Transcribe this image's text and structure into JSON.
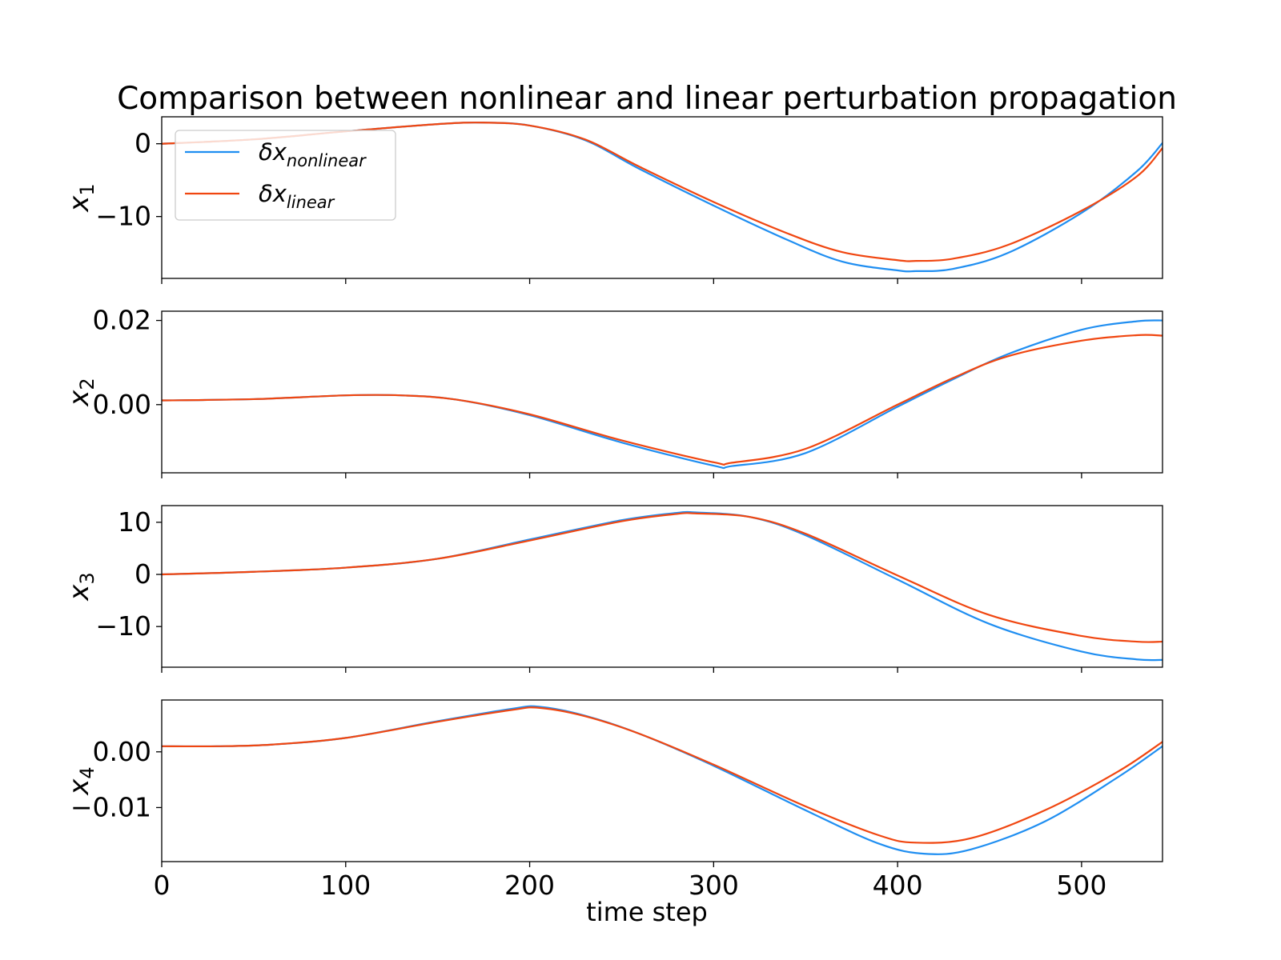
{
  "figure": {
    "title": "Comparison between nonlinear and linear perturbation propagation",
    "xlabel": "time step"
  },
  "colors": {
    "nonlinear": "#1f8ef1",
    "linear": "#f04610"
  },
  "legend": {
    "location": "upper-left (top panel)",
    "entries": [
      {
        "key": "nonlinear",
        "prefix": "δx",
        "subscript": "nonlinear"
      },
      {
        "key": "linear",
        "prefix": "δx",
        "subscript": "linear"
      }
    ]
  },
  "chart_data": [
    {
      "type": "line",
      "ylabel": "x",
      "ylabel_sub": "1",
      "xlim": [
        0,
        544
      ],
      "ylim": [
        -18.5,
        3.7
      ],
      "xticks": [
        0,
        100,
        200,
        300,
        400,
        500
      ],
      "yticks": [
        {
          "v": 0,
          "label": "0"
        },
        {
          "v": -10,
          "label": "−10"
        }
      ],
      "show_xticklabels": false,
      "series": [
        {
          "key": "nonlinear",
          "name": "δx_nonlinear",
          "points": [
            [
              0,
              0
            ],
            [
              50,
              0.6
            ],
            [
              100,
              1.7
            ],
            [
              150,
              2.7
            ],
            [
              175,
              2.9
            ],
            [
              200,
              2.5
            ],
            [
              230,
              0.5
            ],
            [
              260,
              -3.5
            ],
            [
              300,
              -8.5
            ],
            [
              340,
              -13.2
            ],
            [
              370,
              -16.2
            ],
            [
              400,
              -17.4
            ],
            [
              410,
              -17.5
            ],
            [
              430,
              -17.2
            ],
            [
              460,
              -15.0
            ],
            [
              500,
              -9.5
            ],
            [
              530,
              -3.8
            ],
            [
              544,
              0.1
            ]
          ]
        },
        {
          "key": "linear",
          "name": "δx_linear",
          "points": [
            [
              0,
              0
            ],
            [
              50,
              0.6
            ],
            [
              100,
              1.7
            ],
            [
              150,
              2.7
            ],
            [
              175,
              2.9
            ],
            [
              200,
              2.5
            ],
            [
              230,
              0.6
            ],
            [
              260,
              -3.2
            ],
            [
              300,
              -8.0
            ],
            [
              340,
              -12.3
            ],
            [
              370,
              -14.9
            ],
            [
              400,
              -16.0
            ],
            [
              410,
              -16.1
            ],
            [
              430,
              -15.8
            ],
            [
              460,
              -13.9
            ],
            [
              500,
              -9.2
            ],
            [
              530,
              -4.5
            ],
            [
              544,
              -0.6
            ]
          ]
        }
      ]
    },
    {
      "type": "line",
      "ylabel": "x",
      "ylabel_sub": "2",
      "xlim": [
        0,
        544
      ],
      "ylim": [
        -0.0162,
        0.0222
      ],
      "xticks": [
        0,
        100,
        200,
        300,
        400,
        500
      ],
      "yticks": [
        {
          "v": 0.02,
          "label": "0.02"
        },
        {
          "v": 0,
          "label": "0.00"
        }
      ],
      "show_xticklabels": false,
      "series": [
        {
          "key": "nonlinear",
          "name": "δx_nonlinear",
          "points": [
            [
              0,
              0.001
            ],
            [
              50,
              0.0013
            ],
            [
              100,
              0.0022
            ],
            [
              130,
              0.0022
            ],
            [
              160,
              0.0012
            ],
            [
              200,
              -0.0025
            ],
            [
              250,
              -0.009
            ],
            [
              300,
              -0.0145
            ],
            [
              310,
              -0.0146
            ],
            [
              350,
              -0.0115
            ],
            [
              400,
              -0.0005
            ],
            [
              430,
              0.006
            ],
            [
              460,
              0.012
            ],
            [
              500,
              0.0178
            ],
            [
              530,
              0.0198
            ],
            [
              544,
              0.02
            ]
          ]
        },
        {
          "key": "linear",
          "name": "δx_linear",
          "points": [
            [
              0,
              0.001
            ],
            [
              50,
              0.0013
            ],
            [
              100,
              0.0022
            ],
            [
              130,
              0.0022
            ],
            [
              160,
              0.0012
            ],
            [
              200,
              -0.0023
            ],
            [
              250,
              -0.0085
            ],
            [
              300,
              -0.0137
            ],
            [
              310,
              -0.0138
            ],
            [
              350,
              -0.0105
            ],
            [
              400,
              0.0
            ],
            [
              430,
              0.0063
            ],
            [
              460,
              0.0115
            ],
            [
              500,
              0.0152
            ],
            [
              530,
              0.0165
            ],
            [
              544,
              0.0164
            ]
          ]
        }
      ]
    },
    {
      "type": "line",
      "ylabel": "x",
      "ylabel_sub": "3",
      "xlim": [
        0,
        544
      ],
      "ylim": [
        -17.8,
        13.2
      ],
      "xticks": [
        0,
        100,
        200,
        300,
        400,
        500
      ],
      "yticks": [
        {
          "v": 10,
          "label": "10"
        },
        {
          "v": 0,
          "label": "0"
        },
        {
          "v": -10,
          "label": "−10"
        }
      ],
      "show_xticklabels": false,
      "series": [
        {
          "key": "nonlinear",
          "name": "δx_nonlinear",
          "points": [
            [
              0,
              0
            ],
            [
              50,
              0.5
            ],
            [
              100,
              1.3
            ],
            [
              150,
              3.0
            ],
            [
              200,
              6.7
            ],
            [
              250,
              10.4
            ],
            [
              280,
              11.8
            ],
            [
              290,
              11.9
            ],
            [
              320,
              11.0
            ],
            [
              350,
              7.5
            ],
            [
              400,
              -1.0
            ],
            [
              450,
              -9.5
            ],
            [
              500,
              -14.8
            ],
            [
              530,
              -16.3
            ],
            [
              544,
              -16.4
            ]
          ]
        },
        {
          "key": "linear",
          "name": "δx_linear",
          "points": [
            [
              0,
              0
            ],
            [
              50,
              0.5
            ],
            [
              100,
              1.3
            ],
            [
              150,
              3.0
            ],
            [
              200,
              6.5
            ],
            [
              250,
              10.2
            ],
            [
              280,
              11.6
            ],
            [
              290,
              11.7
            ],
            [
              320,
              11.0
            ],
            [
              350,
              7.8
            ],
            [
              400,
              -0.2
            ],
            [
              450,
              -7.8
            ],
            [
              500,
              -11.8
            ],
            [
              530,
              -12.9
            ],
            [
              544,
              -12.9
            ]
          ]
        }
      ]
    },
    {
      "type": "line",
      "ylabel": "x",
      "ylabel_sub": "4",
      "xlim": [
        0,
        544
      ],
      "ylim": [
        -0.0197,
        0.0093
      ],
      "xticks": [
        0,
        100,
        200,
        300,
        400,
        500
      ],
      "yticks": [
        {
          "v": 0,
          "label": "0.00"
        },
        {
          "v": -0.01,
          "label": "−0.01"
        }
      ],
      "show_xticklabels": true,
      "series": [
        {
          "key": "nonlinear",
          "name": "δx_nonlinear",
          "points": [
            [
              0,
              0.001
            ],
            [
              30,
              0.001
            ],
            [
              60,
              0.0013
            ],
            [
              100,
              0.0025
            ],
            [
              150,
              0.0055
            ],
            [
              190,
              0.0077
            ],
            [
              205,
              0.0081
            ],
            [
              230,
              0.0065
            ],
            [
              260,
              0.0032
            ],
            [
              300,
              -0.0025
            ],
            [
              350,
              -0.0105
            ],
            [
              390,
              -0.0165
            ],
            [
              415,
              -0.0183
            ],
            [
              440,
              -0.0175
            ],
            [
              480,
              -0.0125
            ],
            [
              520,
              -0.0045
            ],
            [
              544,
              0.001
            ]
          ]
        },
        {
          "key": "linear",
          "name": "δx_linear",
          "points": [
            [
              0,
              0.001
            ],
            [
              30,
              0.001
            ],
            [
              60,
              0.0013
            ],
            [
              100,
              0.0025
            ],
            [
              150,
              0.0054
            ],
            [
              190,
              0.0075
            ],
            [
              205,
              0.0079
            ],
            [
              230,
              0.0064
            ],
            [
              260,
              0.0032
            ],
            [
              300,
              -0.0023
            ],
            [
              350,
              -0.0098
            ],
            [
              390,
              -0.015
            ],
            [
              410,
              -0.0163
            ],
            [
              440,
              -0.0155
            ],
            [
              480,
              -0.0105
            ],
            [
              520,
              -0.0035
            ],
            [
              544,
              0.0018
            ]
          ]
        }
      ]
    }
  ]
}
